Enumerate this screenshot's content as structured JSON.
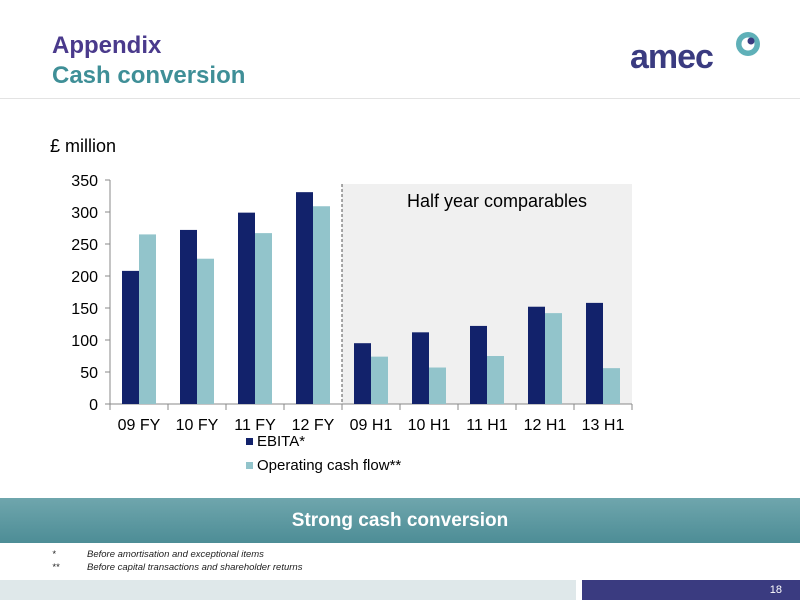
{
  "header": {
    "title": "Appendix",
    "subtitle": "Cash conversion",
    "logo_text": "amec"
  },
  "chart_data": {
    "type": "bar",
    "unit_label": "£ million",
    "categories": [
      "09 FY",
      "10 FY",
      "11 FY",
      "12 FY",
      "09 H1",
      "10 H1",
      "11 H1",
      "12 H1",
      "13 H1"
    ],
    "series": [
      {
        "name": "EBITA*",
        "color": "#12226b",
        "values": [
          208,
          272,
          299,
          331,
          95,
          112,
          122,
          152,
          158
        ]
      },
      {
        "name": "Operating cash flow**",
        "color": "#92c4cb",
        "values": [
          265,
          227,
          267,
          309,
          74,
          57,
          75,
          142,
          56
        ]
      }
    ],
    "ylim": [
      0,
      350
    ],
    "yticks": [
      0,
      50,
      100,
      150,
      200,
      250,
      300,
      350
    ],
    "annotation": "Half year comparables",
    "legend_position": "bottom-left",
    "grid": false
  },
  "banner": {
    "text": "Strong cash conversion"
  },
  "footnotes": [
    {
      "mark": "*",
      "text": "Before amortisation and exceptional items"
    },
    {
      "mark": "**",
      "text": "Before capital transactions and shareholder returns"
    }
  ],
  "footer": {
    "page": "18"
  },
  "colors": {
    "title": "#4a3a8c",
    "subtitle": "#3f8f97",
    "banner": "#5a959d",
    "footer_dark": "#3a3b80",
    "half_year_panel": "#f0f0f0"
  }
}
